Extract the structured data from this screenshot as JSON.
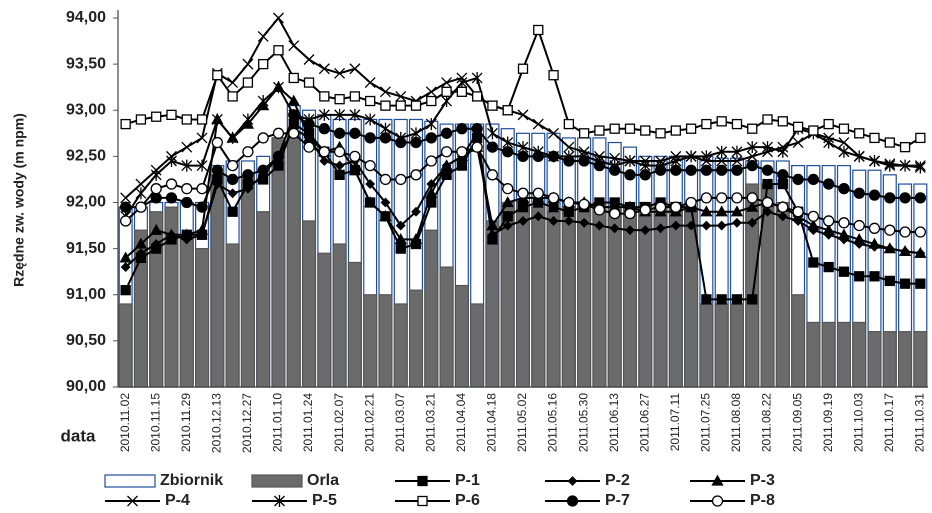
{
  "chart_data": {
    "type": "combo",
    "y_label": "Rzędne zw. wody (m npm)",
    "x_label": "data",
    "ylim": [
      90,
      94
    ],
    "yticks": [
      {
        "value": 90,
        "label": "90,00"
      },
      {
        "value": 90.5,
        "label": "90,50"
      },
      {
        "value": 91,
        "label": "91,00"
      },
      {
        "value": 91.5,
        "label": "91,50"
      },
      {
        "value": 92,
        "label": "92,00"
      },
      {
        "value": 92.5,
        "label": "92,50"
      },
      {
        "value": 93,
        "label": "93,00"
      },
      {
        "value": 93.5,
        "label": "93,50"
      },
      {
        "value": 94,
        "label": "94,00"
      }
    ],
    "categories": [
      "2010.11.02",
      null,
      "2010.11.15",
      null,
      "2010.11.29",
      null,
      "2010.12.13",
      null,
      "2010.12.27",
      null,
      "2011.01.10",
      null,
      "2011.01.24",
      null,
      "2011.02.07",
      null,
      "2011.02.21",
      null,
      "2011.03.07",
      null,
      "2011.03.21",
      null,
      "2011.04.04",
      null,
      "2011.04.18",
      null,
      "2011.05.02",
      null,
      "2011.05.16",
      null,
      "2011.05.30",
      null,
      "2011.06.13",
      null,
      "2011.06.27",
      null,
      "2011.07.11",
      null,
      "2011.07.25",
      null,
      "2011.08.08",
      null,
      "2011.08.22",
      null,
      "2011.09.05",
      null,
      "2011.09.19",
      null,
      "2011.10.03",
      null,
      "2011.10.17",
      null,
      "2011.10.31"
    ],
    "series": [
      {
        "name": "Zbiornik",
        "type": "bar",
        "color": "#ffffff",
        "stroke": "#1f4e9a",
        "values": [
          91.95,
          91.95,
          92.0,
          92.0,
          92.0,
          92.0,
          92.4,
          92.45,
          92.45,
          92.5,
          92.7,
          93.05,
          93.0,
          92.95,
          92.9,
          92.9,
          92.9,
          92.9,
          92.9,
          92.9,
          92.88,
          92.85,
          92.85,
          92.85,
          92.85,
          92.8,
          92.75,
          92.75,
          92.75,
          92.7,
          92.7,
          92.7,
          92.65,
          92.6,
          92.5,
          92.5,
          92.5,
          92.5,
          92.5,
          92.48,
          92.48,
          92.45,
          92.45,
          92.45,
          92.4,
          92.4,
          92.4,
          92.4,
          92.35,
          92.35,
          92.3,
          92.2,
          92.2
        ]
      },
      {
        "name": "Orla",
        "type": "bar",
        "color": "#6b6b6b",
        "stroke": "#555555",
        "values": [
          90.9,
          91.7,
          91.9,
          91.95,
          91.65,
          91.5,
          92.3,
          91.55,
          92.3,
          91.9,
          92.7,
          92.75,
          91.8,
          91.45,
          91.55,
          91.35,
          91.0,
          91.0,
          90.9,
          91.05,
          91.7,
          91.3,
          91.1,
          90.9,
          91.8,
          92.0,
          92.0,
          91.95,
          91.9,
          91.95,
          92.0,
          92.0,
          91.95,
          91.95,
          92.0,
          92.0,
          92.0,
          91.95,
          90.9,
          90.9,
          90.9,
          92.2,
          92.2,
          92.0,
          91.0,
          90.7,
          90.7,
          90.7,
          90.7,
          90.6,
          90.6,
          90.6,
          90.6
        ]
      },
      {
        "name": "P-1",
        "type": "line",
        "marker": "square",
        "color": "#000000",
        "values": [
          91.05,
          91.4,
          91.5,
          91.6,
          91.65,
          91.65,
          92.25,
          91.9,
          92.2,
          92.25,
          92.4,
          92.85,
          92.75,
          92.55,
          92.3,
          92.35,
          92.0,
          91.85,
          91.5,
          91.55,
          92.0,
          92.3,
          92.4,
          92.7,
          91.6,
          91.85,
          91.95,
          92.0,
          91.95,
          91.9,
          91.95,
          92.0,
          92.0,
          91.95,
          91.95,
          92.0,
          91.95,
          91.95,
          90.95,
          90.95,
          90.95,
          90.95,
          92.2,
          92.2,
          91.9,
          91.35,
          91.3,
          91.25,
          91.2,
          91.2,
          91.15,
          91.12,
          91.12
        ]
      },
      {
        "name": "P-2",
        "type": "line",
        "marker": "diamond",
        "color": "#000000",
        "values": [
          91.3,
          91.45,
          91.55,
          91.65,
          91.6,
          91.65,
          92.2,
          92.1,
          92.15,
          92.3,
          92.5,
          92.8,
          92.7,
          92.45,
          92.4,
          92.45,
          92.2,
          92.0,
          91.75,
          91.9,
          92.2,
          92.4,
          92.5,
          92.75,
          91.65,
          91.75,
          91.8,
          91.85,
          91.8,
          91.8,
          91.78,
          91.75,
          91.72,
          91.7,
          91.7,
          91.72,
          91.75,
          91.75,
          91.75,
          91.75,
          91.78,
          91.78,
          91.9,
          91.85,
          91.8,
          91.7,
          91.65,
          91.6,
          91.55,
          91.52,
          91.5,
          91.47,
          91.45
        ]
      },
      {
        "name": "P-3",
        "type": "line",
        "marker": "triangle",
        "color": "#000000",
        "values": [
          91.4,
          91.55,
          91.7,
          91.65,
          91.65,
          91.7,
          92.9,
          92.7,
          92.85,
          93.05,
          93.25,
          93.1,
          92.7,
          92.55,
          92.6,
          92.35,
          92.0,
          91.85,
          91.6,
          91.6,
          92.1,
          92.4,
          92.5,
          92.6,
          91.75,
          92.0,
          92.05,
          92.05,
          92.05,
          92.0,
          92.0,
          91.95,
          91.95,
          91.95,
          91.9,
          91.9,
          91.9,
          91.95,
          91.9,
          91.9,
          91.9,
          91.95,
          92.0,
          91.95,
          91.85,
          91.75,
          91.7,
          91.65,
          91.6,
          91.55,
          91.5,
          91.47,
          91.45
        ]
      },
      {
        "name": "P-4",
        "type": "line",
        "marker": "x",
        "color": "#000000",
        "values": [
          92.05,
          92.2,
          92.35,
          92.5,
          92.6,
          92.7,
          93.4,
          93.3,
          93.5,
          93.8,
          94.0,
          93.7,
          93.55,
          93.45,
          93.4,
          93.45,
          93.3,
          93.2,
          93.15,
          93.1,
          93.2,
          93.3,
          93.35,
          93.15,
          93.05,
          93.0,
          92.95,
          92.85,
          92.75,
          92.6,
          92.55,
          92.5,
          92.48,
          92.45,
          92.45,
          92.45,
          92.5,
          92.5,
          92.45,
          92.45,
          92.45,
          92.5,
          92.55,
          92.6,
          92.65,
          92.75,
          92.7,
          92.65,
          92.5,
          92.45,
          92.42,
          92.4,
          92.4
        ]
      },
      {
        "name": "P-5",
        "type": "line",
        "marker": "star",
        "color": "#000000",
        "values": [
          91.85,
          92.1,
          92.3,
          92.45,
          92.4,
          92.4,
          92.9,
          92.7,
          92.9,
          93.1,
          93.25,
          92.95,
          92.9,
          92.95,
          92.95,
          92.95,
          92.9,
          92.8,
          92.7,
          92.75,
          92.85,
          93.1,
          93.3,
          93.35,
          92.75,
          92.65,
          92.6,
          92.55,
          92.5,
          92.5,
          92.5,
          92.45,
          92.4,
          92.45,
          92.4,
          92.4,
          92.45,
          92.5,
          92.5,
          92.55,
          92.55,
          92.6,
          92.6,
          92.55,
          92.8,
          92.75,
          92.65,
          92.55,
          92.5,
          92.45,
          92.4,
          92.4,
          92.38
        ]
      },
      {
        "name": "P-6",
        "type": "line",
        "marker": "square-open",
        "color": "#000000",
        "values": [
          92.85,
          92.9,
          92.93,
          92.95,
          92.9,
          92.9,
          93.38,
          93.15,
          93.3,
          93.5,
          93.65,
          93.35,
          93.3,
          93.15,
          93.12,
          93.15,
          93.1,
          93.05,
          93.05,
          93.05,
          93.1,
          93.2,
          93.2,
          93.15,
          93.05,
          93.0,
          93.45,
          93.87,
          93.38,
          92.85,
          92.75,
          92.78,
          92.8,
          92.8,
          92.78,
          92.75,
          92.78,
          92.8,
          92.85,
          92.88,
          92.85,
          92.8,
          92.9,
          92.88,
          92.82,
          92.78,
          92.85,
          92.8,
          92.75,
          92.7,
          92.65,
          92.6,
          92.7
        ]
      },
      {
        "name": "P-7",
        "type": "line",
        "marker": "circle",
        "color": "#000000",
        "values": [
          91.95,
          91.95,
          92.05,
          92.05,
          92.0,
          91.95,
          92.35,
          92.25,
          92.3,
          92.35,
          92.5,
          92.95,
          92.85,
          92.8,
          92.75,
          92.75,
          92.7,
          92.7,
          92.65,
          92.65,
          92.7,
          92.75,
          92.8,
          92.8,
          92.6,
          92.55,
          92.5,
          92.5,
          92.5,
          92.45,
          92.45,
          92.4,
          92.35,
          92.3,
          92.3,
          92.35,
          92.35,
          92.35,
          92.35,
          92.35,
          92.35,
          92.4,
          92.35,
          92.3,
          92.25,
          92.25,
          92.2,
          92.15,
          92.1,
          92.08,
          92.05,
          92.05,
          92.05
        ]
      },
      {
        "name": "P-8",
        "type": "line",
        "marker": "circle-open",
        "color": "#000000",
        "values": [
          91.8,
          91.95,
          92.15,
          92.2,
          92.15,
          92.15,
          92.65,
          92.4,
          92.55,
          92.7,
          92.75,
          92.75,
          92.6,
          92.55,
          92.55,
          92.5,
          92.4,
          92.25,
          92.25,
          92.3,
          92.45,
          92.55,
          92.55,
          92.6,
          92.3,
          92.15,
          92.1,
          92.1,
          92.05,
          92.0,
          91.98,
          91.92,
          91.88,
          91.88,
          91.92,
          91.95,
          91.95,
          92.0,
          92.05,
          92.05,
          92.05,
          92.05,
          92.0,
          91.95,
          91.9,
          91.85,
          91.8,
          91.78,
          91.75,
          91.72,
          91.7,
          91.68,
          91.68
        ]
      }
    ]
  }
}
